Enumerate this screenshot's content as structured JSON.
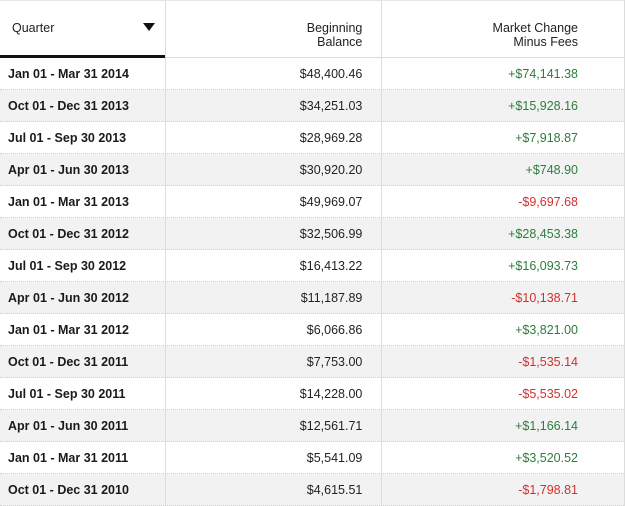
{
  "header": {
    "quarter": "Quarter",
    "beginning_line1": "Beginning",
    "beginning_line2": "Balance",
    "market_line1": "Market Change",
    "market_line2": "Minus Fees",
    "sort_icon": "caret-down-icon"
  },
  "colors": {
    "positive": "#2e7d3e",
    "negative": "#d0312d",
    "alt_row": "#f2f2f2"
  },
  "rows": [
    {
      "quarter": "Jan 01 - Mar 31 2014",
      "beginning": "$48,400.46",
      "market": "+$74,141.38",
      "sign": "pos"
    },
    {
      "quarter": "Oct 01 - Dec 31 2013",
      "beginning": "$34,251.03",
      "market": "+$15,928.16",
      "sign": "pos"
    },
    {
      "quarter": "Jul 01 - Sep 30 2013",
      "beginning": "$28,969.28",
      "market": "+$7,918.87",
      "sign": "pos"
    },
    {
      "quarter": "Apr 01 - Jun 30 2013",
      "beginning": "$30,920.20",
      "market": "+$748.90",
      "sign": "pos"
    },
    {
      "quarter": "Jan 01 - Mar 31 2013",
      "beginning": "$49,969.07",
      "market": "-$9,697.68",
      "sign": "neg"
    },
    {
      "quarter": "Oct 01 - Dec 31 2012",
      "beginning": "$32,506.99",
      "market": "+$28,453.38",
      "sign": "pos"
    },
    {
      "quarter": "Jul 01 - Sep 30 2012",
      "beginning": "$16,413.22",
      "market": "+$16,093.73",
      "sign": "pos"
    },
    {
      "quarter": "Apr 01 - Jun 30 2012",
      "beginning": "$11,187.89",
      "market": "-$10,138.71",
      "sign": "neg"
    },
    {
      "quarter": "Jan 01 - Mar 31 2012",
      "beginning": "$6,066.86",
      "market": "+$3,821.00",
      "sign": "pos"
    },
    {
      "quarter": "Oct 01 - Dec 31 2011",
      "beginning": "$7,753.00",
      "market": "-$1,535.14",
      "sign": "neg"
    },
    {
      "quarter": "Jul 01 - Sep 30 2011",
      "beginning": "$14,228.00",
      "market": "-$5,535.02",
      "sign": "neg"
    },
    {
      "quarter": "Apr 01 - Jun 30 2011",
      "beginning": "$12,561.71",
      "market": "+$1,166.14",
      "sign": "pos"
    },
    {
      "quarter": "Jan 01 - Mar 31 2011",
      "beginning": "$5,541.09",
      "market": "+$3,520.52",
      "sign": "pos"
    },
    {
      "quarter": "Oct 01 - Dec 31 2010",
      "beginning": "$4,615.51",
      "market": "-$1,798.81",
      "sign": "neg"
    }
  ]
}
